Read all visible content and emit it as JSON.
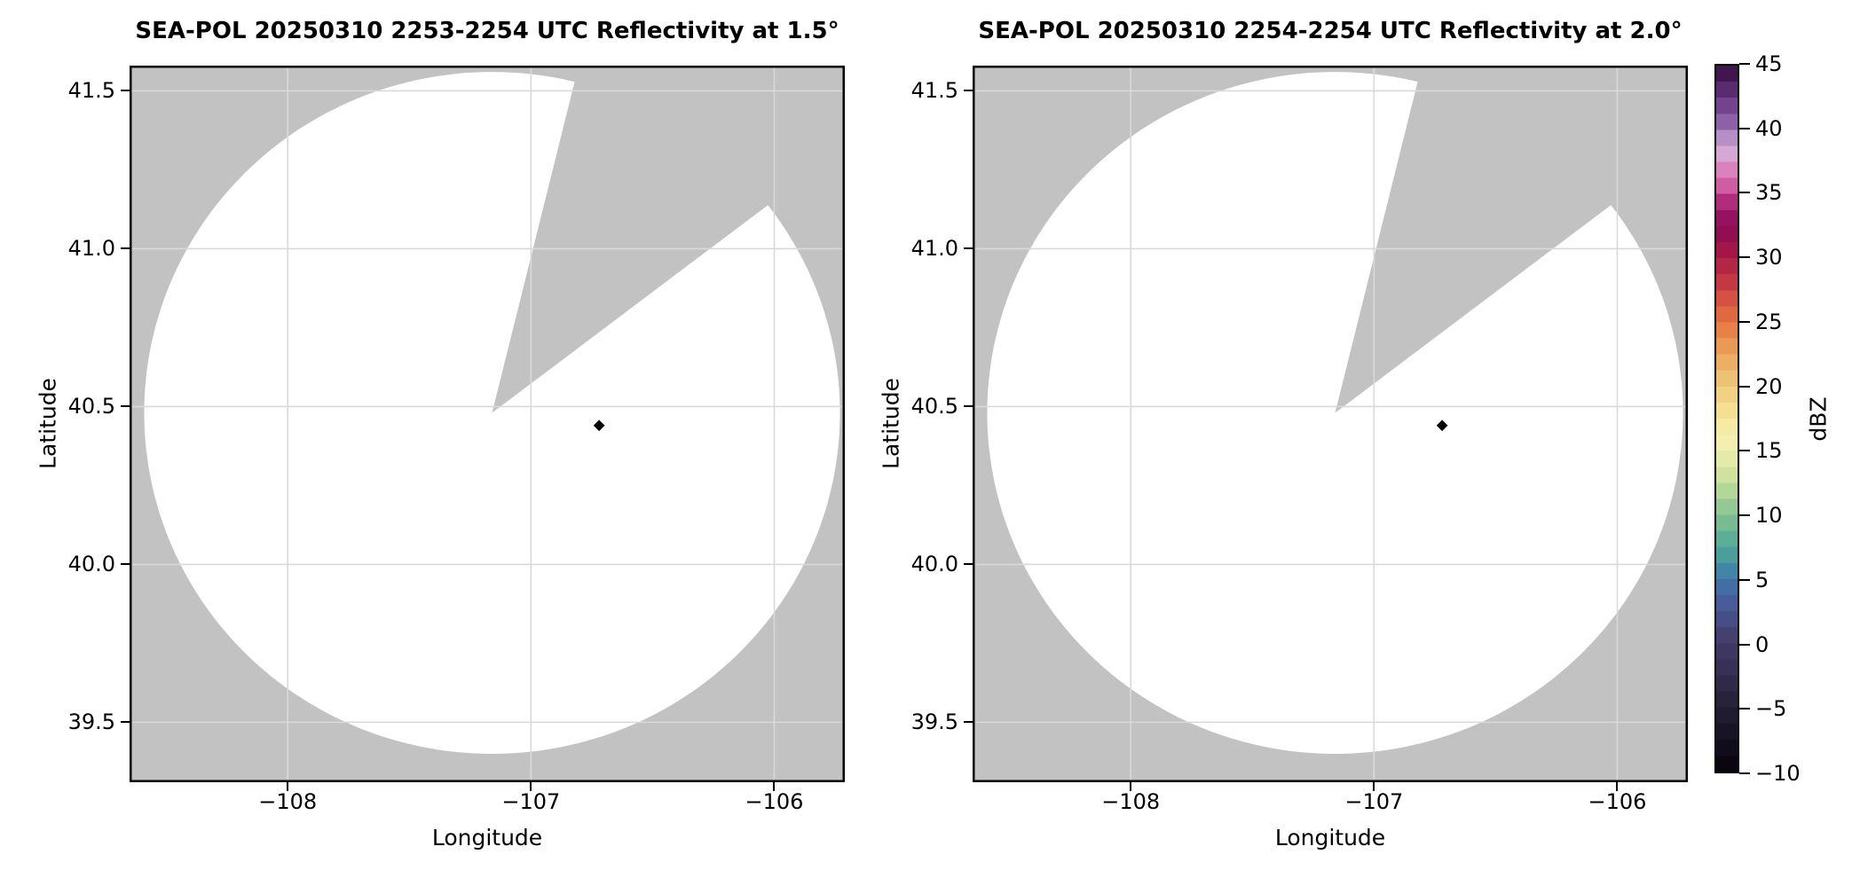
{
  "figure": {
    "background": "#ffffff",
    "panel_bg": "#c2c2c2",
    "scan_fill": "#ffffff",
    "grid_color": "#d9d9d9",
    "spine_color": "#000000",
    "tick_color": "#000000"
  },
  "chart_data": {
    "type": "heatmap",
    "subtype": "radar-ppi-reflectivity-pair",
    "panels": [
      {
        "title": "SEA-POL 20250310 2253-2254 UTC Reflectivity at 1.5°",
        "elevation_deg": 1.5,
        "echo_points": [
          {
            "lon": -106.72,
            "lat": 40.44,
            "dbz_est": -10
          }
        ]
      },
      {
        "title": "SEA-POL 20250310 2254-2254 UTC Reflectivity at 2.0°",
        "elevation_deg": 2.0,
        "echo_points": [
          {
            "lon": -106.72,
            "lat": 40.44,
            "dbz_est": -10
          }
        ]
      }
    ],
    "axes": {
      "xlabel": "Longitude",
      "ylabel": "Latitude",
      "xlim": [
        -108.65,
        -105.71
      ],
      "ylim": [
        39.31,
        41.58
      ],
      "xticks": [
        -108,
        -107,
        -106
      ],
      "xtick_labels": [
        "−108",
        "−107",
        "−106"
      ],
      "yticks": [
        41.5,
        41.0,
        40.5,
        40.0,
        39.5
      ],
      "ytick_labels": [
        "41.5",
        "41.0",
        "40.5",
        "40.0",
        "39.5"
      ],
      "grid": true
    },
    "radar": {
      "name": "SEA-POL",
      "center_lon": -107.16,
      "center_lat": 40.48,
      "scan_radius_lon_deg": 1.43,
      "scan_radius_lat_deg": 1.08,
      "blocked_sector_azimuth_deg": [
        14,
        53
      ]
    },
    "colorbar": {
      "label": "dBZ",
      "min": -10,
      "max": 45,
      "step_dbz": 1.25,
      "ticks": [
        45,
        40,
        35,
        30,
        25,
        20,
        15,
        10,
        5,
        0,
        -5,
        -10
      ],
      "tick_labels": [
        "45",
        "40",
        "35",
        "30",
        "25",
        "20",
        "15",
        "10",
        "5",
        "0",
        "−5",
        "−10"
      ],
      "stops": [
        {
          "v": -10,
          "c": "#060108"
        },
        {
          "v": -7.5,
          "c": "#141021"
        },
        {
          "v": -5,
          "c": "#241f36"
        },
        {
          "v": -2.5,
          "c": "#342c50"
        },
        {
          "v": 0,
          "c": "#423a67"
        },
        {
          "v": 1.5,
          "c": "#464a80"
        },
        {
          "v": 3,
          "c": "#475a97"
        },
        {
          "v": 5,
          "c": "#4076ac"
        },
        {
          "v": 6.5,
          "c": "#459a9e"
        },
        {
          "v": 8,
          "c": "#5aad96"
        },
        {
          "v": 10,
          "c": "#85c292"
        },
        {
          "v": 11.5,
          "c": "#aad395"
        },
        {
          "v": 13,
          "c": "#cfe19f"
        },
        {
          "v": 15,
          "c": "#eeeeab"
        },
        {
          "v": 16,
          "c": "#f6f1b2"
        },
        {
          "v": 17.5,
          "c": "#f5e69c"
        },
        {
          "v": 20,
          "c": "#efcb7c"
        },
        {
          "v": 22.5,
          "c": "#eba65a"
        },
        {
          "v": 25,
          "c": "#e57541"
        },
        {
          "v": 26.5,
          "c": "#da5940"
        },
        {
          "v": 28,
          "c": "#c63a44"
        },
        {
          "v": 30,
          "c": "#ad1c44"
        },
        {
          "v": 31.25,
          "c": "#9a0f4b"
        },
        {
          "v": 32.5,
          "c": "#8a0a56"
        },
        {
          "v": 34,
          "c": "#a51d72"
        },
        {
          "v": 35,
          "c": "#c84590"
        },
        {
          "v": 36,
          "c": "#d569ad"
        },
        {
          "v": 37,
          "c": "#dc85c0"
        },
        {
          "v": 38,
          "c": "#d8a5d5"
        },
        {
          "v": 38.75,
          "c": "#d2aeda"
        },
        {
          "v": 40,
          "c": "#9a6fb3"
        },
        {
          "v": 41.5,
          "c": "#7b4a97"
        },
        {
          "v": 43,
          "c": "#5c2d75"
        },
        {
          "v": 44,
          "c": "#471a58"
        },
        {
          "v": 45,
          "c": "#340e3f"
        }
      ]
    }
  }
}
